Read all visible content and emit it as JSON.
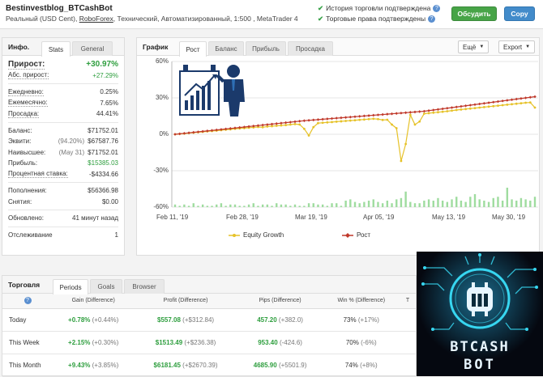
{
  "header": {
    "account_name": "Bestinvestblog_BTCashBot",
    "account_prefix": "Реальный (USD Cent),",
    "broker": "RoboForex",
    "account_suffix": ", Технический, Автоматизированный, 1:500 , MetaTrader 4",
    "history_verified": "История торговли подтверждена",
    "trading_verified": "Торговые права подтверждены",
    "subscribe_label": "Обсудить",
    "copy_label": "Copy"
  },
  "info": {
    "title": "Инфо.",
    "tabs": [
      "Stats",
      "General"
    ],
    "growth_label": "Прирост:",
    "growth_value": "+30.97%",
    "abs_growth_label": "Абс. прирост:",
    "abs_growth_value": "+27.29%",
    "daily_label": "Ежедневно:",
    "daily_value": "0.25%",
    "monthly_label": "Ежемесячно:",
    "monthly_value": "7.65%",
    "drawdown_label": "Просадка:",
    "drawdown_value": "44.41%",
    "balance_label": "Баланс:",
    "balance_value": "$71752.01",
    "equity_label": "Эквити:",
    "equity_pct": "(94.20%)",
    "equity_value": "$67587.76",
    "highest_label": "Наивысшее:",
    "highest_date": "(May 31)",
    "highest_value": "$71752.01",
    "profit_label": "Прибыль:",
    "profit_value": "$15385.03",
    "interest_label": "Процентная ставка:",
    "interest_value": "-$4334.66",
    "deposits_label": "Пополнения:",
    "deposits_value": "$56366.98",
    "withdrawals_label": "Снятия:",
    "withdrawals_value": "$0.00",
    "updated_label": "Обновлено:",
    "updated_value": "41 минут назад",
    "tracking_label": "Отслеживание",
    "tracking_value": "1"
  },
  "chart_panel": {
    "title": "График",
    "tabs": [
      "Рост",
      "Баланс",
      "Прибыль",
      "Просадка"
    ],
    "more_label": "Ещё",
    "export_label": "Export"
  },
  "chart_data": {
    "type": "line",
    "title": "",
    "y_ticks": [
      "60%",
      "30%",
      "0%",
      "-30%",
      "-60%"
    ],
    "ylim": [
      -60,
      60
    ],
    "x_ticks": [
      "Feb 11, '19",
      "Feb 28, '19",
      "Mar 19, '19",
      "Apr 05, '19",
      "May 13, '19",
      "May 30, '19"
    ],
    "series": [
      {
        "name": "Equity Growth",
        "color": "#e6c229",
        "values": [
          0,
          0.3,
          0.6,
          1,
          1.3,
          1.7,
          2,
          2.4,
          2.7,
          3,
          3.4,
          3.8,
          4.1,
          4.5,
          4.8,
          5.1,
          5.4,
          5.7,
          6,
          5.8,
          6.4,
          6.7,
          7,
          7.3,
          7.6,
          8,
          8.4,
          8.1,
          4.5,
          -1,
          5.9,
          9.2,
          9.5,
          9.8,
          10.1,
          10.4,
          10.7,
          11,
          11.3,
          11.6,
          11.9,
          12.2,
          12.5,
          12.8,
          12.5,
          11.8,
          12,
          8,
          5,
          -22,
          -8,
          16,
          8,
          10.5,
          17,
          17.4,
          17.8,
          18.2,
          18.6,
          19,
          19.5,
          20,
          20.4,
          20.8,
          21.2,
          21.6,
          22,
          22.4,
          22.8,
          23.2,
          23.6,
          24,
          24.4,
          24.8,
          25.2,
          25.6,
          26,
          26.2,
          22
        ]
      },
      {
        "name": "Рост",
        "color": "#c0392b",
        "values": [
          0,
          0.4,
          0.8,
          1.2,
          1.6,
          2,
          2.4,
          2.8,
          3.2,
          3.6,
          4,
          4.4,
          4.8,
          5.2,
          5.6,
          6,
          6.4,
          6.8,
          7.2,
          7.6,
          8,
          8.4,
          8.8,
          9.2,
          9.6,
          10,
          10.4,
          10.8,
          11.2,
          11.5,
          11.8,
          12.1,
          12.4,
          12.7,
          13,
          13.3,
          13.6,
          13.9,
          14.2,
          14.5,
          14.8,
          15.1,
          15.4,
          15.7,
          16,
          16.3,
          16.6,
          16.9,
          17.2,
          17.5,
          17.8,
          18.1,
          18.4,
          18.7,
          19,
          19.5,
          20,
          20.5,
          21,
          21.5,
          22,
          22.5,
          23,
          23.5,
          24,
          24.5,
          25,
          25.5,
          26,
          26.5,
          27,
          27.5,
          28,
          28.5,
          29,
          29.5,
          30,
          30.5,
          31
        ]
      }
    ],
    "volume": [
      2,
      1,
      2,
      1,
      3,
      1,
      2,
      1,
      1,
      2,
      3,
      1,
      2,
      2,
      1,
      1,
      2,
      3,
      1,
      2,
      2,
      1,
      3,
      2,
      2,
      1,
      2,
      1,
      1,
      3,
      3,
      2,
      2,
      1,
      3,
      3,
      1,
      5,
      6,
      4,
      3,
      4,
      5,
      6,
      4,
      3,
      5,
      3,
      6,
      7,
      12,
      4,
      3,
      3,
      5,
      6,
      5,
      7,
      5,
      4,
      6,
      8,
      5,
      4,
      8,
      10,
      6,
      5,
      4,
      7,
      8,
      5,
      15,
      6,
      5,
      7,
      6,
      5,
      8
    ],
    "legend": [
      "Equity Growth",
      "Рост"
    ]
  },
  "trading": {
    "title": "Торговля",
    "tabs": [
      "Periods",
      "Goals",
      "Browser"
    ],
    "columns": [
      "Gain (Difference)",
      "Profit (Difference)",
      "Pips (Difference)",
      "Win % (Difference)",
      "T"
    ],
    "rows": [
      {
        "period": "Today",
        "gain": "+0.78%",
        "gain_diff": "(+0.44%)",
        "profit": "$557.08",
        "profit_diff": "(+$312.84)",
        "pips": "457.20",
        "pips_diff": "(+382.0)",
        "win": "73%",
        "win_diff": "(+17%)"
      },
      {
        "period": "This Week",
        "gain": "+2.15%",
        "gain_diff": "(+0.30%)",
        "profit": "$1513.49",
        "profit_diff": "(+$236.38)",
        "pips": "953.40",
        "pips_diff": "(-424.6)",
        "win": "70%",
        "win_diff": "(-6%)"
      },
      {
        "period": "This Month",
        "gain": "+9.43%",
        "gain_diff": "(+3.85%)",
        "profit": "$6181.45",
        "profit_diff": "(+$2670.39)",
        "pips": "4685.90",
        "pips_diff": "(+5501.9)",
        "win": "74%",
        "win_diff": "(+8%)"
      }
    ]
  },
  "logo": {
    "line1": "BTCASH",
    "line2": "BOT"
  }
}
